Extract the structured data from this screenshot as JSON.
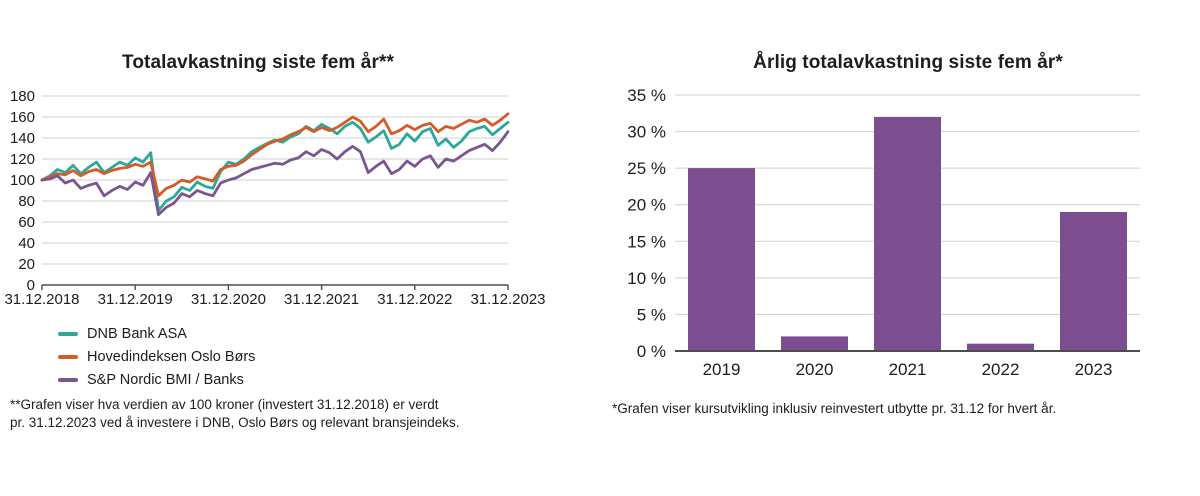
{
  "chart_data": [
    {
      "type": "line",
      "title": "Totalavkastning siste fem år**",
      "footnote_line1": "**Grafen viser hva verdien av 100 kroner (investert 31.12.2018) er verdt",
      "footnote_line2": "pr. 31.12.2023 ved å investere i DNB, Oslo Børs og relevant bransjeindeks.",
      "x_tick_labels": [
        "31.12.2018",
        "31.12.2019",
        "31.12.2020",
        "31.12.2021",
        "31.12.2022",
        "31.12.2023"
      ],
      "ylim": [
        0,
        180
      ],
      "y_tick_step": 20,
      "grid": true,
      "grid_color": "#cfcfcf",
      "axis_color": "#4d4d4d",
      "legend_position": "bottom-left",
      "series": [
        {
          "name": "DNB Bank ASA",
          "color": "#2BA89A",
          "values": [
            100,
            104,
            110,
            107,
            114,
            106,
            112,
            117,
            107,
            112,
            117,
            114,
            121,
            117,
            126,
            71,
            80,
            84,
            93,
            90,
            98,
            94,
            92,
            108,
            117,
            115,
            120,
            127,
            131,
            135,
            138,
            136,
            141,
            144,
            151,
            147,
            153,
            149,
            144,
            151,
            155,
            149,
            136,
            141,
            147,
            130,
            134,
            144,
            137,
            146,
            149,
            133,
            139,
            131,
            137,
            146,
            149,
            151,
            143,
            149,
            155
          ]
        },
        {
          "name": "Hovedindeksen Oslo Børs",
          "color": "#D55B28",
          "values": [
            100,
            103,
            106,
            105,
            109,
            104,
            108,
            110,
            106,
            109,
            111,
            112,
            115,
            113,
            117,
            85,
            92,
            95,
            100,
            98,
            103,
            101,
            99,
            110,
            113,
            114,
            118,
            124,
            129,
            134,
            137,
            139,
            143,
            146,
            150,
            146,
            150,
            147,
            150,
            155,
            160,
            156,
            146,
            151,
            158,
            144,
            147,
            152,
            148,
            152,
            154,
            146,
            151,
            149,
            153,
            157,
            155,
            158,
            152,
            157,
            163
          ]
        },
        {
          "name": "S&P Nordic BMI / Banks",
          "color": "#7B5590",
          "values": [
            100,
            101,
            104,
            97,
            100,
            92,
            95,
            97,
            85,
            90,
            94,
            91,
            98,
            95,
            107,
            67,
            74,
            78,
            87,
            84,
            90,
            87,
            85,
            97,
            100,
            102,
            106,
            110,
            112,
            114,
            116,
            115,
            119,
            121,
            127,
            123,
            129,
            126,
            120,
            127,
            132,
            127,
            107,
            113,
            118,
            106,
            110,
            118,
            113,
            120,
            123,
            112,
            120,
            118,
            123,
            128,
            131,
            134,
            128,
            136,
            146
          ]
        }
      ]
    },
    {
      "type": "bar",
      "title": "Årlig totalavkastning siste fem år*",
      "footnote": "*Grafen viser kursutvikling inklusiv reinvestert utbytte pr. 31.12 for hvert år.",
      "categories": [
        "2019",
        "2020",
        "2021",
        "2022",
        "2023"
      ],
      "values": [
        25,
        2,
        32,
        1,
        19
      ],
      "unit": "%",
      "y_tick_suffix": " %",
      "ylim": [
        0,
        35
      ],
      "y_tick_step": 5,
      "grid": true,
      "grid_color": "#cfcfcf",
      "axis_color": "#4d4d4d",
      "bar_color": "#7C4E90"
    }
  ]
}
